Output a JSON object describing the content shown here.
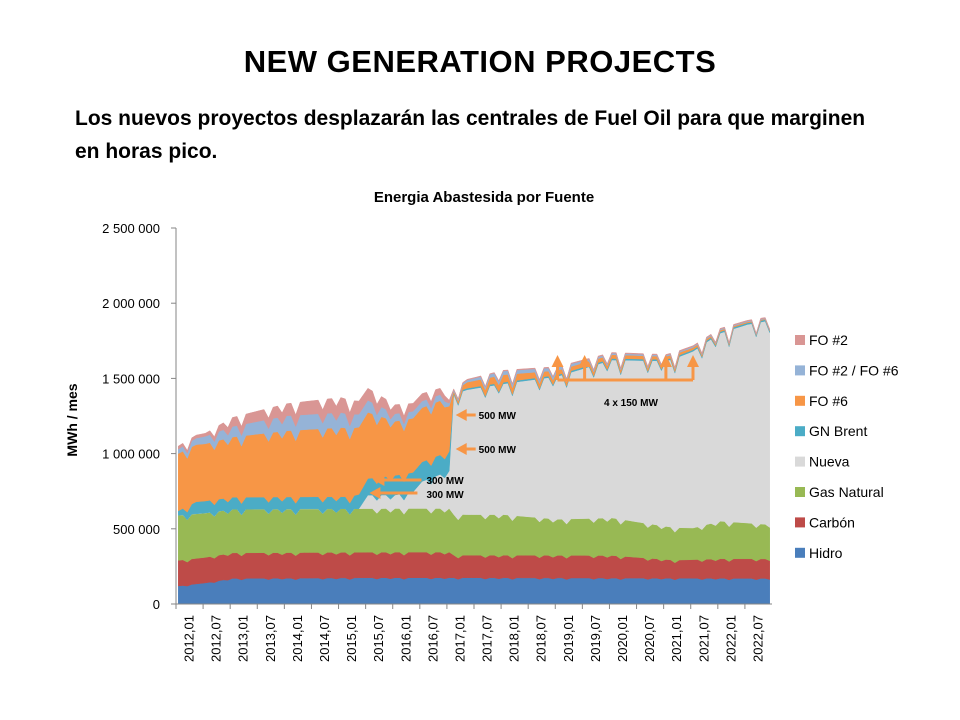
{
  "slide": {
    "title": "NEW GENERATION PROJECTS",
    "subtitle": "Los nuevos proyectos desplazarán las centrales de Fuel Oil para que marginen en horas pico."
  },
  "chart_data": {
    "type": "area",
    "stacked": true,
    "title": "Energia Abastesida por Fuente",
    "xlabel": "",
    "ylabel": "MWh / mes",
    "ylim": [
      0,
      2500000
    ],
    "yticks": [
      0,
      500000,
      1000000,
      1500000,
      2000000,
      2500000
    ],
    "ytick_labels": [
      "0",
      "500 000",
      "1 000 000",
      "1 500 000",
      "2 000 000",
      "2 500 000"
    ],
    "xtick_labels": [
      "2012,01",
      "2012,07",
      "2013,01",
      "2013,07",
      "2014,01",
      "2014,07",
      "2015,01",
      "2015,07",
      "2016,01",
      "2016,07",
      "2017,01",
      "2017,07",
      "2018,01",
      "2018,07",
      "2019,01",
      "2019,07",
      "2020,01",
      "2020,07",
      "2021,01",
      "2021,07",
      "2022,01",
      "2022,07"
    ],
    "grid": false,
    "legend_position": "right",
    "series": [
      {
        "name": "Hidro",
        "color": "#4a7ebb",
        "anchors": [
          [
            0,
            120000
          ],
          [
            6,
            140000
          ],
          [
            12,
            170000
          ],
          [
            48,
            175000
          ],
          [
            60,
            175000
          ],
          [
            130,
            170000
          ]
        ]
      },
      {
        "name": "Carbón",
        "color": "#be4b48",
        "anchors": [
          [
            0,
            170000
          ],
          [
            12,
            170000
          ],
          [
            60,
            170000
          ],
          [
            61,
            150000
          ],
          [
            96,
            150000
          ],
          [
            110,
            120000
          ],
          [
            120,
            130000
          ],
          [
            130,
            130000
          ]
        ]
      },
      {
        "name": "Gas Natural",
        "color": "#98b954",
        "anchors": [
          [
            0,
            300000
          ],
          [
            12,
            290000
          ],
          [
            60,
            290000
          ],
          [
            61,
            270000
          ],
          [
            72,
            270000
          ],
          [
            84,
            240000
          ],
          [
            96,
            250000
          ],
          [
            108,
            220000
          ],
          [
            114,
            210000
          ],
          [
            120,
            250000
          ],
          [
            130,
            230000
          ]
        ]
      },
      {
        "name": "Nueva",
        "color": "#d9d9d9",
        "anchors": [
          [
            0,
            0
          ],
          [
            40,
            0
          ],
          [
            42,
            90000
          ],
          [
            48,
            90000
          ],
          [
            52,
            110000
          ],
          [
            54,
            180000
          ],
          [
            60,
            250000
          ],
          [
            61,
            800000
          ],
          [
            64,
            830000
          ],
          [
            72,
            870000
          ],
          [
            84,
            950000
          ],
          [
            96,
            1050000
          ],
          [
            108,
            1100000
          ],
          [
            120,
            1250000
          ],
          [
            126,
            1320000
          ],
          [
            130,
            1350000
          ]
        ]
      },
      {
        "name": "GN Brent",
        "color": "#4bacc6",
        "anchors": [
          [
            0,
            30000
          ],
          [
            4,
            80000
          ],
          [
            38,
            80000
          ],
          [
            42,
            110000
          ],
          [
            48,
            130000
          ],
          [
            59,
            130000
          ],
          [
            60,
            130000
          ],
          [
            61,
            10000
          ],
          [
            130,
            10000
          ]
        ]
      },
      {
        "name": "FO #6",
        "color": "#f79646",
        "anchors": [
          [
            0,
            380000
          ],
          [
            6,
            380000
          ],
          [
            12,
            400000
          ],
          [
            24,
            440000
          ],
          [
            36,
            460000
          ],
          [
            42,
            440000
          ],
          [
            48,
            360000
          ],
          [
            54,
            360000
          ],
          [
            59,
            360000
          ],
          [
            60,
            300000
          ],
          [
            61,
            10000
          ],
          [
            64,
            40000
          ],
          [
            72,
            50000
          ],
          [
            84,
            30000
          ],
          [
            96,
            25000
          ],
          [
            108,
            20000
          ],
          [
            120,
            10000
          ],
          [
            130,
            5000
          ]
        ]
      },
      {
        "name": "FO #2 / FO #6",
        "color": "#95b3d7",
        "anchors": [
          [
            0,
            30000
          ],
          [
            6,
            50000
          ],
          [
            12,
            70000
          ],
          [
            24,
            100000
          ],
          [
            36,
            100000
          ],
          [
            42,
            80000
          ],
          [
            48,
            50000
          ],
          [
            59,
            40000
          ],
          [
            60,
            20000
          ],
          [
            61,
            10000
          ],
          [
            72,
            25000
          ],
          [
            84,
            20000
          ],
          [
            96,
            10000
          ],
          [
            130,
            5000
          ]
        ]
      },
      {
        "name": "FO #2",
        "color": "#d99694",
        "anchors": [
          [
            0,
            20000
          ],
          [
            6,
            20000
          ],
          [
            12,
            60000
          ],
          [
            24,
            80000
          ],
          [
            36,
            100000
          ],
          [
            42,
            80000
          ],
          [
            48,
            60000
          ],
          [
            59,
            40000
          ],
          [
            60,
            20000
          ],
          [
            61,
            5000
          ],
          [
            130,
            5000
          ]
        ]
      }
    ],
    "monthly_dips": [
      {
        "month": 2,
        "factor": 0.94
      },
      {
        "month": 8,
        "factor": 0.95
      },
      {
        "month": 11,
        "factor": 0.96
      }
    ],
    "annotations": [
      {
        "text": "500 MW",
        "at_month": 61
      },
      {
        "text": "500 MW",
        "at_month": 61
      },
      {
        "text": "300 MW",
        "at_month": 45
      },
      {
        "text": "300 MW",
        "at_month": 45
      },
      {
        "text": "4 x 150 MW",
        "at_months": [
          84,
          90,
          108,
          114
        ]
      }
    ]
  }
}
